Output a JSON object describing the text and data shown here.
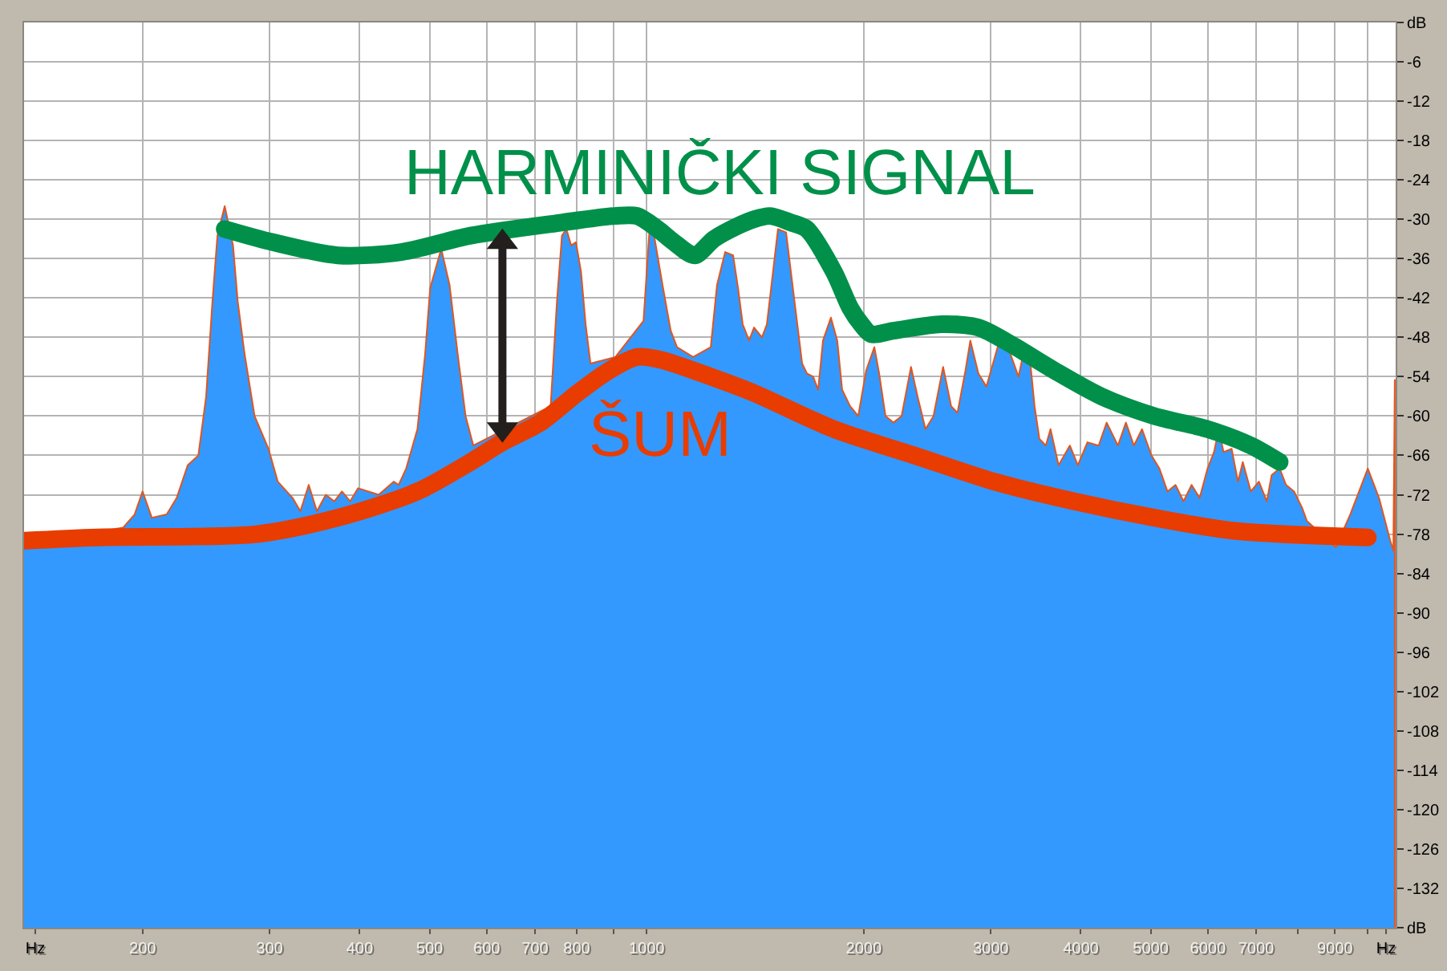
{
  "chart_data": {
    "type": "area",
    "log": "x",
    "grid": true,
    "xlim": [
      137,
      10930
    ],
    "xticks": [
      {
        "value": 142,
        "label": "Hz"
      },
      200,
      300,
      400,
      500,
      600,
      700,
      800,
      {
        "value": 900,
        "label": null
      },
      1000,
      2000,
      3000,
      4000,
      5000,
      6000,
      7000,
      {
        "value": 8000,
        "label": null
      },
      9000,
      {
        "value": 10000,
        "label": null
      },
      {
        "value": 10600,
        "label": "Hz"
      }
    ],
    "ylim": [
      -138,
      0
    ],
    "yticks": [
      {
        "value": -138,
        "label": "dB"
      },
      -132,
      -126,
      -120,
      -114,
      -108,
      -102,
      -96,
      -90,
      -84,
      -78,
      -72,
      -66,
      -60,
      -54,
      -48,
      -42,
      -36,
      -30,
      -24,
      -18,
      -12,
      -6,
      {
        "value": 0,
        "label": "dB"
      }
    ],
    "series": [
      {
        "color": "#3399ff",
        "x": [
          137,
          188,
          195,
          200,
          206,
          216,
          223,
          231,
          239,
          245,
          250,
          254,
          260,
          267,
          271,
          277,
          286,
          299,
          308,
          323,
          331,
          340,
          349,
          359,
          369,
          378,
          388,
          398,
          425,
          446,
          453,
          464,
          481,
          493,
          501,
          519,
          533,
          547,
          561,
          575,
          736,
          751,
          763,
          774,
          786,
          798,
          811,
          823,
          836,
          905,
          990,
          1010,
          1026,
          1052,
          1080,
          1102,
          1160,
          1227,
          1252,
          1285,
          1318,
          1339,
          1359,
          1387,
          1409,
          1445,
          1468,
          1521,
          1561,
          1585,
          1618,
          1643,
          1668,
          1702,
          1729,
          1756,
          1801,
          1838,
          1867,
          1915,
          1965,
          2016,
          2069,
          2101,
          2144,
          2199,
          2257,
          2326,
          2375,
          2436,
          2499,
          2577,
          2644,
          2698,
          2768,
          2811,
          2884,
          2959,
          3067,
          3147,
          3194,
          3278,
          3329,
          3398,
          3451,
          3505,
          3577,
          3631,
          3726,
          3862,
          3962,
          4085,
          4234,
          4344,
          4503,
          4619,
          4739,
          4863,
          5012,
          5141,
          5275,
          5412,
          5553,
          5697,
          5845,
          5995,
          6119,
          6215,
          6310,
          6474,
          6607,
          6709,
          6884,
          7063,
          7244,
          7356,
          7547,
          7703,
          7903,
          8109,
          8234,
          9027,
          9454,
          10000,
          10365,
          10743,
          10850,
          10900
        ],
        "values": [
          -79.5,
          -77,
          -75,
          -71.5,
          -75.5,
          -75,
          -72.5,
          -67.5,
          -66,
          -57,
          -42.5,
          -32.5,
          -28,
          -34,
          -42.5,
          -50.5,
          -60,
          -65,
          -70,
          -72.5,
          -74.5,
          -70.5,
          -74.5,
          -72,
          -73,
          -71.5,
          -73,
          -71,
          -72,
          -70,
          -70.5,
          -68,
          -62,
          -50.5,
          -40.5,
          -34.5,
          -40,
          -50.5,
          -60,
          -64.5,
          -58.5,
          -42.5,
          -32.5,
          -31.5,
          -34,
          -33.5,
          -38,
          -46,
          -52,
          -51,
          -45.5,
          -31,
          -33,
          -40,
          -47,
          -49.5,
          -51,
          -49.5,
          -40,
          -35,
          -35.5,
          -40.5,
          -46,
          -48.5,
          -46.5,
          -48,
          -46,
          -31.5,
          -32,
          -38,
          -46,
          -52,
          -53.5,
          -54,
          -56,
          -48.5,
          -45,
          -48.5,
          -56,
          -58.5,
          -60,
          -53,
          -49.5,
          -53.5,
          -60,
          -61,
          -60,
          -52.5,
          -57,
          -62,
          -60,
          -52.5,
          -58.5,
          -59.5,
          -53,
          -48.5,
          -53.5,
          -55.5,
          -49.5,
          -49,
          -50.5,
          -54,
          -50.5,
          -51,
          -58.5,
          -63.5,
          -64.5,
          -62,
          -67.5,
          -64.5,
          -67.5,
          -64,
          -64.5,
          -61,
          -64.5,
          -61,
          -64.5,
          -62,
          -66,
          -68,
          -71.5,
          -70.5,
          -73,
          -70.5,
          -72.5,
          -68,
          -65.5,
          -62,
          -65.5,
          -65,
          -70,
          -67,
          -71.5,
          -70,
          -73,
          -69,
          -68,
          -70.5,
          -71.5,
          -74,
          -76,
          -80,
          -75,
          -68,
          -72.5,
          -79,
          -80.5,
          -54.5
        ]
      },
      {
        "type": "line",
        "name": "HARMINIČKI SIGNAL",
        "color": "#00904a",
        "x": [
          260,
          303,
          373,
          457,
          570,
          763,
          903,
          970,
          1036,
          1091,
          1166,
          1240,
          1339,
          1409,
          1483,
          1585,
          1668,
          1818,
          1915,
          1984,
          2047,
          2199,
          2563,
          2884,
          3194,
          3668,
          4272,
          5058,
          5995,
          6884,
          7547
        ],
        "values": [
          -31.5,
          -33.5,
          -35.5,
          -35,
          -32.5,
          -30.5,
          -29.5,
          -29.5,
          -31.5,
          -33.5,
          -35.5,
          -33,
          -31,
          -30,
          -29.5,
          -30.5,
          -31.5,
          -38,
          -43.5,
          -46,
          -47.5,
          -47,
          -46,
          -46.5,
          -49,
          -53,
          -57,
          -60,
          -62,
          -64.5,
          -67
        ]
      },
      {
        "type": "line",
        "name": "ŠUM",
        "color": "#e83c00",
        "x": [
          137,
          173,
          288,
          373,
          481,
          570,
          631,
          713,
          802,
          889,
          970,
          1052,
          1227,
          1409,
          1818,
          2350,
          3033,
          3917,
          5058,
          6531,
          10000
        ],
        "values": [
          -79,
          -78.5,
          -78,
          -75.5,
          -71.5,
          -67,
          -64,
          -61,
          -56.5,
          -53,
          -51,
          -51.5,
          -54,
          -56.5,
          -62,
          -66,
          -70,
          -73,
          -75.5,
          -77.5,
          -78.5
        ]
      },
      {
        "type": "line",
        "color": "#231f1c",
        "marker": "triangle",
        "x": [
          631,
          631
        ],
        "values": [
          -33.5,
          -62
        ]
      }
    ]
  }
}
